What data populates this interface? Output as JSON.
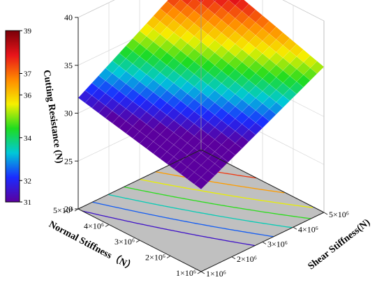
{
  "chart_data": {
    "type": "surface",
    "zlabel": "Cutting Resistance (N)",
    "xlabel": "Normal Stiffness（N）",
    "ylabel": "Shear Stiffness(N)",
    "z_ticks": [
      "20",
      "25",
      "30",
      "35",
      "40"
    ],
    "z_range": [
      20,
      40
    ],
    "x_range": [
      1000000,
      5000000
    ],
    "y_range": [
      1000000,
      5000000
    ],
    "x_ticks": [
      "1×10⁶",
      "2×10⁶",
      "3×10⁶",
      "4×10⁶",
      "5×10⁶"
    ],
    "y_ticks": [
      "1×10⁶",
      "2×10⁶",
      "3×10⁶",
      "4×10⁶",
      "5×10⁶"
    ],
    "surface_corners": {
      "normal_5e6_shear_1e6": 31.6,
      "normal_1e6_shear_1e6": 28.6,
      "normal_5e6_shear_5e6": 39.4,
      "normal_1e6_shear_5e6": 35.2
    },
    "colorbar": {
      "min": 31,
      "max": 39,
      "ticks": [
        "31",
        "32",
        "34",
        "36",
        "37",
        "39"
      ],
      "tick_values": [
        31,
        32,
        34,
        36,
        37,
        39
      ]
    },
    "contour_levels": [
      31.5,
      32.5,
      33.5,
      34.5,
      35.5,
      36.5,
      37.5,
      38.5
    ],
    "grid": true,
    "colormap": [
      "#5b009e",
      "#1b2bff",
      "#00c8d8",
      "#1fdc1f",
      "#f5f000",
      "#ff8a00",
      "#e8141a",
      "#7a0008"
    ]
  }
}
